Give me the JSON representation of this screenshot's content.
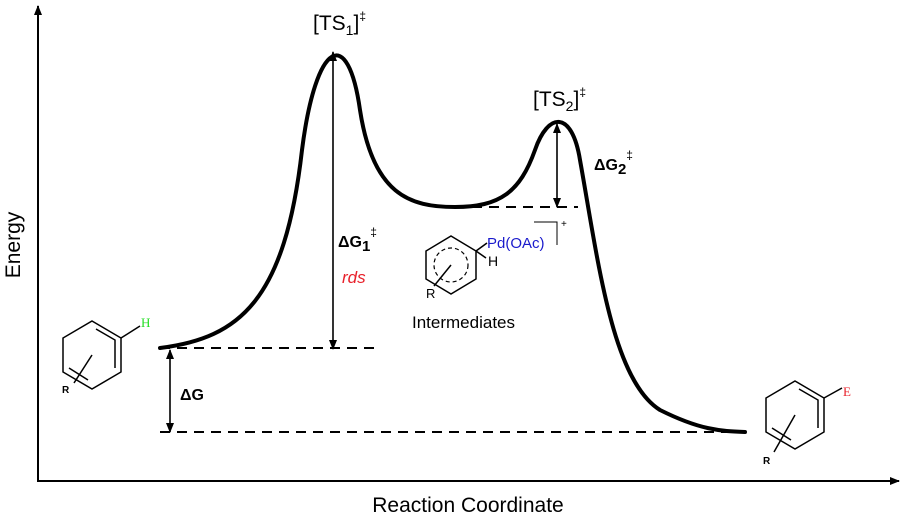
{
  "axes": {
    "y_label": "Energy",
    "x_label": "Reaction Coordinate"
  },
  "ts1": {
    "prefix": "[TS",
    "sub": "1",
    "suffix": "]",
    "sup": "‡"
  },
  "ts2": {
    "prefix": "[TS",
    "sub": "2",
    "suffix": "]",
    "sup": "‡"
  },
  "dg1": {
    "symbol": "ΔG",
    "sub": "1",
    "sup": "‡"
  },
  "dg2": {
    "symbol": "ΔG",
    "sub": "2",
    "sup": "‡"
  },
  "dg": "ΔG",
  "rds": "rds",
  "intermediates": "Intermediates",
  "reactant": {
    "substituent": "H",
    "group": "R"
  },
  "intermediate": {
    "metal": "Pd(OAc)",
    "hydrogen": "H",
    "group": "R",
    "charge": "+"
  },
  "product": {
    "substituent": "E",
    "group": "R"
  }
}
